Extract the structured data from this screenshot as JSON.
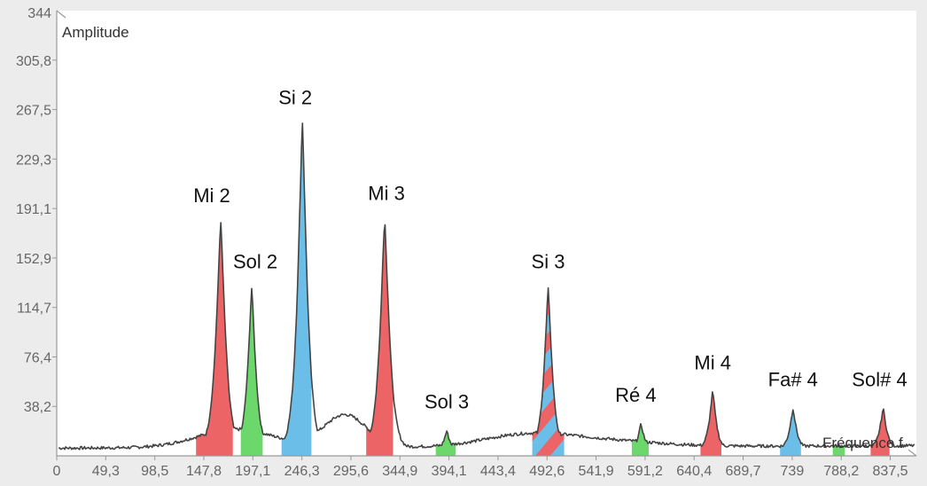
{
  "colors": {
    "red": "#ec6466",
    "green": "#6cd86c",
    "blue": "#6bbee8",
    "line": "#444444",
    "plot_bg": "#ffffff",
    "page_bg": "#ececec"
  },
  "chart_data": {
    "type": "area",
    "xlabel": "Fréquence f",
    "ylabel": "Amplitude",
    "xlim": [
      0,
      864
    ],
    "ylim": [
      0,
      344
    ],
    "y_top_label": "344",
    "xticks": [
      "0",
      "49,3",
      "98,5",
      "147,8",
      "197,1",
      "246,3",
      "295,6",
      "344,9",
      "394,1",
      "443,4",
      "492,6",
      "541,9",
      "591,2",
      "640,4",
      "689,7",
      "739",
      "788,2",
      "837,5"
    ],
    "yticks": [
      "38,2",
      "76,4",
      "114,7",
      "152,9",
      "191,1",
      "229,3",
      "267,5",
      "305,8"
    ],
    "baseline": 6,
    "peaks": [
      {
        "label": "Mi 2",
        "freq": 164.8,
        "amplitude": 178,
        "color": "red",
        "band": [
          140,
          177
        ]
      },
      {
        "label": "Sol 2",
        "freq": 196,
        "amplitude": 127,
        "color": "green",
        "band": [
          185,
          207
        ]
      },
      {
        "label": "Si 2",
        "freq": 246.9,
        "amplitude": 254,
        "color": "blue",
        "band": [
          226,
          256
        ]
      },
      {
        "label": "Mi 3",
        "freq": 329.6,
        "amplitude": 180,
        "color": "red",
        "band": [
          311,
          338
        ]
      },
      {
        "label": "Sol 3",
        "freq": 392,
        "amplitude": 19,
        "color": "green",
        "band": [
          381,
          401
        ]
      },
      {
        "label": "Si 3",
        "freq": 493.9,
        "amplitude": 127,
        "color": "striped",
        "band": [
          478,
          510
        ]
      },
      {
        "label": "Ré 4",
        "freq": 587.3,
        "amplitude": 24,
        "color": "green",
        "band": [
          578,
          595
        ]
      },
      {
        "label": "Mi 4",
        "freq": 659.3,
        "amplitude": 49,
        "color": "red",
        "band": [
          647,
          668
        ]
      },
      {
        "label": "Fa# 4",
        "freq": 740,
        "amplitude": 36,
        "color": "blue",
        "band": [
          727,
          748
        ]
      },
      {
        "label": "Sol# 4",
        "freq": 830.6,
        "amplitude": 36,
        "color": "red",
        "band": [
          818,
          837
        ]
      }
    ],
    "extra_bands": [
      {
        "color": "green",
        "band": [
          780,
          792
        ],
        "amplitude": 6
      }
    ]
  }
}
